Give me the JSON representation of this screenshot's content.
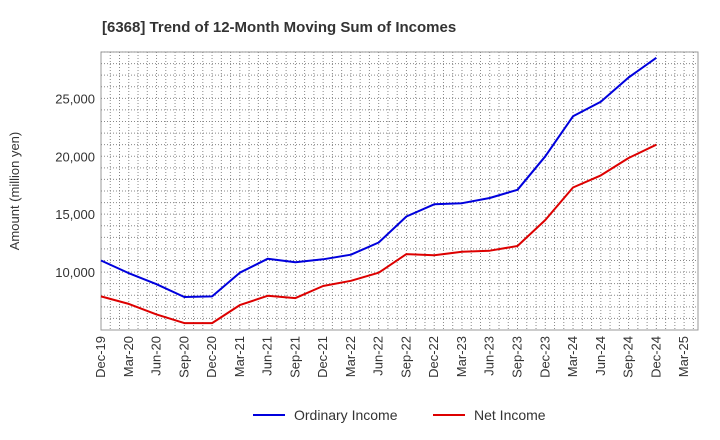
{
  "chart_data": {
    "type": "line",
    "title": "[6368]  Trend of 12-Month Moving Sum of Incomes",
    "xlabel": "",
    "ylabel": "Amount (million yen)",
    "ylim": [
      5000,
      29000
    ],
    "yticks": [
      10000,
      15000,
      20000,
      25000
    ],
    "ytick_labels": [
      "10,000",
      "15,000",
      "20,000",
      "25,000"
    ],
    "grid": true,
    "legend_position": "bottom-center",
    "categories": [
      "Dec-19",
      "Mar-20",
      "Jun-20",
      "Sep-20",
      "Dec-20",
      "Mar-21",
      "Jun-21",
      "Sep-21",
      "Dec-21",
      "Mar-22",
      "Jun-22",
      "Sep-22",
      "Dec-22",
      "Mar-23",
      "Jun-23",
      "Sep-23",
      "Dec-23",
      "Mar-24",
      "Jun-24",
      "Sep-24",
      "Dec-24",
      "Mar-25"
    ],
    "series": [
      {
        "name": "Ordinary Income",
        "color": "#0000dd",
        "values": [
          11000,
          9900,
          8950,
          7850,
          7900,
          9950,
          11150,
          10850,
          11100,
          11500,
          12550,
          14800,
          15850,
          15950,
          16400,
          17100,
          20000,
          23450,
          24700,
          26800,
          28500,
          null
        ]
      },
      {
        "name": "Net Income",
        "color": "#dd0000",
        "values": [
          7900,
          7250,
          6350,
          5600,
          5600,
          7150,
          7950,
          7750,
          8800,
          9250,
          9950,
          11550,
          11450,
          11750,
          11850,
          12250,
          14500,
          17300,
          18350,
          19850,
          21000,
          null
        ]
      }
    ]
  }
}
